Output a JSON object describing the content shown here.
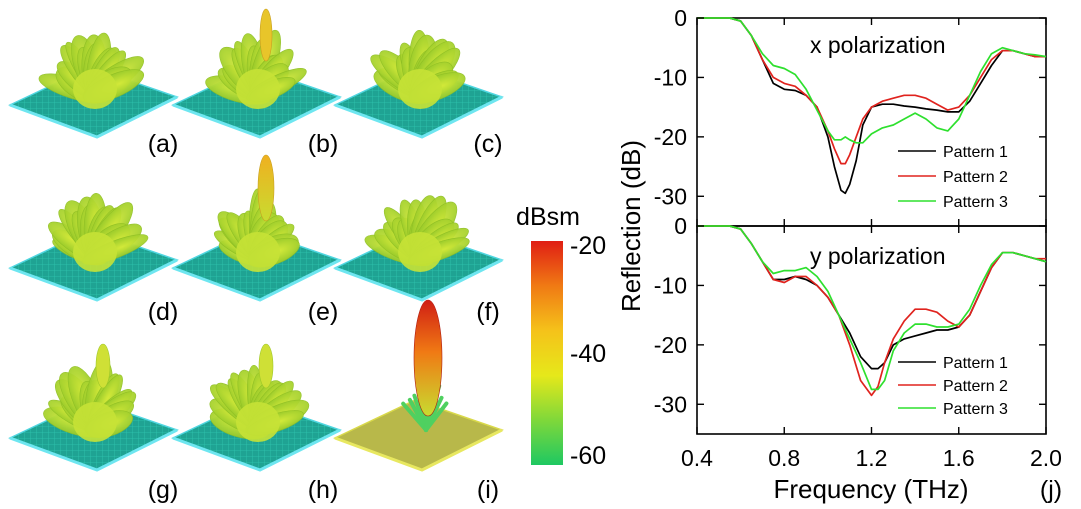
{
  "panels": [
    {
      "label": "(a)"
    },
    {
      "label": "(b)"
    },
    {
      "label": "(c)"
    },
    {
      "label": "(d)"
    },
    {
      "label": "(e)"
    },
    {
      "label": "(f)"
    },
    {
      "label": "(g)"
    },
    {
      "label": "(h)"
    },
    {
      "label": "(i)"
    }
  ],
  "colorbar": {
    "title": "dBsm",
    "ticks": [
      "-20",
      "-40",
      "-60"
    ],
    "range": [
      -62,
      -18
    ],
    "colors": [
      "#1ec862",
      "#7fd83a",
      "#e6e81a",
      "#f5c21a",
      "#f07a14",
      "#e01e14"
    ]
  },
  "colors": {
    "ground_plane": "#1fa393",
    "ground_edge": "#4fd6e0",
    "ground_plane_i": "#b8b84a",
    "lobe": "#b9dc2e"
  },
  "chart_data": [
    {
      "type": "line",
      "panel_label": "",
      "annotation": "x polarization",
      "xlabel": "Frequency (THz)",
      "ylabel": "Reflection (dB)",
      "xlim": [
        0.4,
        2.0
      ],
      "ylim": [
        -35,
        0
      ],
      "yticks": [
        "0",
        "-10",
        "-20",
        "-30"
      ],
      "legend": "bottom-right",
      "series": [
        {
          "name": "Pattern 1",
          "color": "#000000",
          "x": [
            0.4,
            0.5,
            0.55,
            0.6,
            0.65,
            0.7,
            0.75,
            0.8,
            0.85,
            0.9,
            0.95,
            1.0,
            1.03,
            1.06,
            1.08,
            1.1,
            1.13,
            1.16,
            1.2,
            1.25,
            1.3,
            1.35,
            1.4,
            1.45,
            1.5,
            1.55,
            1.6,
            1.65,
            1.7,
            1.75,
            1.8,
            1.85,
            1.9,
            1.95,
            2.0
          ],
          "y": [
            0,
            0,
            0,
            -0.5,
            -3,
            -7,
            -11,
            -12,
            -12.2,
            -13,
            -15,
            -20,
            -25,
            -29,
            -29.5,
            -28,
            -24,
            -18,
            -15,
            -14.5,
            -14.5,
            -14.8,
            -15,
            -15.3,
            -15.5,
            -15.8,
            -15.8,
            -14,
            -11,
            -8,
            -5.5,
            -5.5,
            -6,
            -6.5,
            -6.5
          ]
        },
        {
          "name": "Pattern 2",
          "color": "#e0231e",
          "x": [
            0.4,
            0.5,
            0.55,
            0.6,
            0.65,
            0.7,
            0.75,
            0.8,
            0.85,
            0.9,
            0.95,
            1.0,
            1.03,
            1.06,
            1.08,
            1.1,
            1.13,
            1.16,
            1.2,
            1.25,
            1.3,
            1.35,
            1.4,
            1.45,
            1.5,
            1.55,
            1.6,
            1.65,
            1.7,
            1.75,
            1.8,
            1.85,
            1.9,
            1.95,
            2.0
          ],
          "y": [
            0,
            0,
            0,
            -0.5,
            -3,
            -7,
            -10,
            -11,
            -11.5,
            -13,
            -15,
            -19,
            -22,
            -24.5,
            -24.5,
            -23,
            -20,
            -17,
            -15,
            -14,
            -13.5,
            -13,
            -13,
            -13.5,
            -14.5,
            -15.5,
            -15,
            -13,
            -10,
            -7,
            -5.5,
            -5.5,
            -6,
            -6.5,
            -6.5
          ]
        },
        {
          "name": "Pattern 3",
          "color": "#2ee02e",
          "x": [
            0.4,
            0.5,
            0.55,
            0.6,
            0.65,
            0.7,
            0.75,
            0.8,
            0.85,
            0.9,
            0.95,
            1.0,
            1.03,
            1.06,
            1.08,
            1.1,
            1.13,
            1.16,
            1.2,
            1.25,
            1.3,
            1.35,
            1.4,
            1.45,
            1.5,
            1.55,
            1.6,
            1.65,
            1.7,
            1.75,
            1.8,
            1.85,
            1.9,
            1.95,
            2.0
          ],
          "y": [
            0,
            0,
            0,
            -0.5,
            -3,
            -6,
            -8,
            -8.5,
            -9.5,
            -12,
            -15.5,
            -19,
            -20.5,
            -20.5,
            -20,
            -20.5,
            -21,
            -21,
            -19.5,
            -18.5,
            -18,
            -17,
            -16,
            -17,
            -18.5,
            -19,
            -17,
            -13,
            -9,
            -6,
            -5,
            -5.5,
            -6,
            -6.2,
            -6.5
          ]
        }
      ]
    },
    {
      "type": "line",
      "panel_label": "(j)",
      "annotation": "y polarization",
      "xlabel": "Frequency (THz)",
      "ylabel": "Reflection (dB)",
      "xlim": [
        0.4,
        2.0
      ],
      "ylim": [
        -35,
        0
      ],
      "xticks": [
        "0.4",
        "0.8",
        "1.2",
        "1.6",
        "2.0"
      ],
      "yticks": [
        "0",
        "-10",
        "-20",
        "-30"
      ],
      "legend": "bottom-right",
      "series": [
        {
          "name": "Pattern 1",
          "color": "#000000",
          "x": [
            0.4,
            0.5,
            0.55,
            0.6,
            0.65,
            0.7,
            0.75,
            0.8,
            0.85,
            0.9,
            0.95,
            1.0,
            1.05,
            1.1,
            1.15,
            1.2,
            1.23,
            1.26,
            1.3,
            1.35,
            1.4,
            1.45,
            1.5,
            1.55,
            1.6,
            1.65,
            1.7,
            1.75,
            1.8,
            1.85,
            1.9,
            1.95,
            2.0
          ],
          "y": [
            0,
            0,
            0,
            -0.5,
            -3,
            -6,
            -9,
            -9,
            -8.5,
            -9,
            -10,
            -12,
            -15,
            -18,
            -22,
            -24,
            -24,
            -23,
            -20,
            -19,
            -18.5,
            -18,
            -17.5,
            -17.5,
            -17,
            -15,
            -11,
            -7,
            -4.5,
            -4.5,
            -5,
            -5.5,
            -6
          ]
        },
        {
          "name": "Pattern 2",
          "color": "#e0231e",
          "x": [
            0.4,
            0.5,
            0.55,
            0.6,
            0.65,
            0.7,
            0.75,
            0.8,
            0.85,
            0.9,
            0.95,
            1.0,
            1.05,
            1.1,
            1.15,
            1.2,
            1.23,
            1.26,
            1.3,
            1.35,
            1.4,
            1.45,
            1.5,
            1.55,
            1.6,
            1.65,
            1.7,
            1.75,
            1.8,
            1.85,
            1.9,
            1.95,
            2.0
          ],
          "y": [
            0,
            0,
            0,
            -0.5,
            -3,
            -6,
            -9,
            -9.5,
            -8.5,
            -8.5,
            -10,
            -12,
            -15,
            -20,
            -26,
            -28.5,
            -27,
            -23,
            -19,
            -16,
            -14,
            -14,
            -14.5,
            -16,
            -17,
            -15,
            -11,
            -7,
            -4.5,
            -4.5,
            -5,
            -5.5,
            -5.5
          ]
        },
        {
          "name": "Pattern 3",
          "color": "#2ee02e",
          "x": [
            0.4,
            0.5,
            0.55,
            0.6,
            0.65,
            0.7,
            0.75,
            0.8,
            0.85,
            0.9,
            0.95,
            1.0,
            1.05,
            1.1,
            1.15,
            1.2,
            1.23,
            1.26,
            1.3,
            1.35,
            1.4,
            1.45,
            1.5,
            1.55,
            1.6,
            1.65,
            1.7,
            1.75,
            1.8,
            1.85,
            1.9,
            1.95,
            2.0
          ],
          "y": [
            0,
            0,
            0,
            -0.5,
            -3,
            -6,
            -8,
            -7.5,
            -7.5,
            -7,
            -8.5,
            -11,
            -15,
            -19,
            -23,
            -27.5,
            -27.5,
            -26,
            -21,
            -18,
            -16.5,
            -16.5,
            -17,
            -17,
            -16.5,
            -14,
            -10,
            -6.5,
            -4.5,
            -4.5,
            -5,
            -5.5,
            -6
          ]
        }
      ]
    }
  ]
}
